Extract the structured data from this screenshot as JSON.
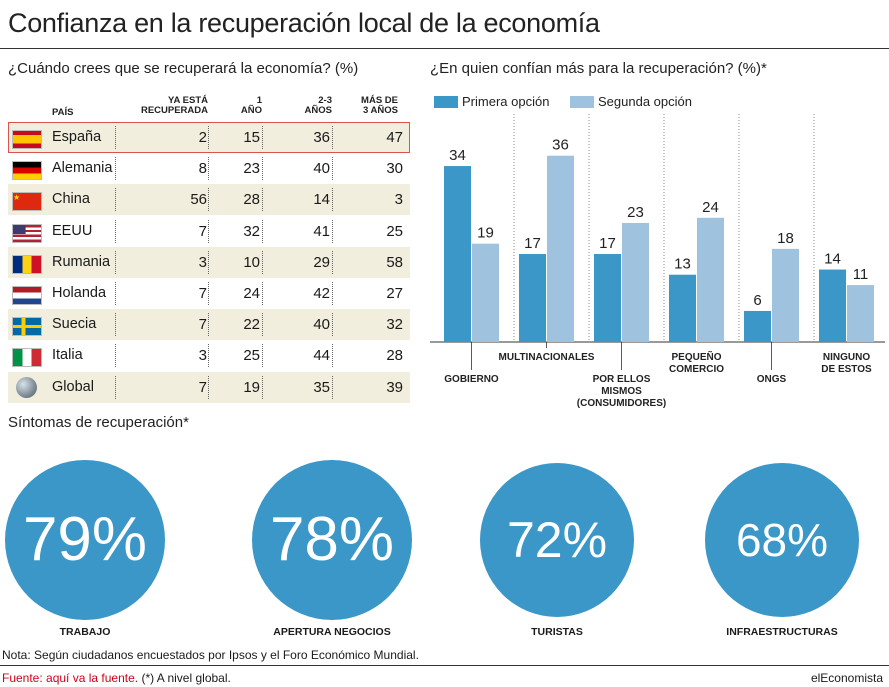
{
  "title": "Confianza en la recuperación local de la economía",
  "table": {
    "subtitle": "¿Cuándo crees que se recuperará la economía? (%)",
    "headers": {
      "country": "PAÍS",
      "recovered": [
        "YA ESTÁ",
        "RECUPERADA"
      ],
      "one_year": [
        "1",
        "AÑO"
      ],
      "two_three": [
        "2-3",
        "AÑOS"
      ],
      "more_three": [
        "MÁS DE",
        "3 AÑOS"
      ]
    },
    "rows": [
      {
        "country": "España",
        "flag": "spain-flag-icon",
        "values": [
          2,
          15,
          36,
          47
        ]
      },
      {
        "country": "Alemania",
        "flag": "germany-flag-icon",
        "values": [
          8,
          23,
          40,
          30
        ]
      },
      {
        "country": "China",
        "flag": "china-flag-icon",
        "values": [
          56,
          28,
          14,
          3
        ]
      },
      {
        "country": "EEUU",
        "flag": "usa-flag-icon",
        "values": [
          7,
          32,
          41,
          25
        ]
      },
      {
        "country": "Rumania",
        "flag": "romania-flag-icon",
        "values": [
          3,
          10,
          29,
          58
        ]
      },
      {
        "country": "Holanda",
        "flag": "netherlands-flag-icon",
        "values": [
          7,
          24,
          42,
          27
        ]
      },
      {
        "country": "Suecia",
        "flag": "sweden-flag-icon",
        "values": [
          7,
          22,
          40,
          32
        ]
      },
      {
        "country": "Italia",
        "flag": "italy-flag-icon",
        "values": [
          3,
          25,
          44,
          28
        ]
      },
      {
        "country": "Global",
        "flag": "globe-icon",
        "values": [
          7,
          19,
          35,
          39
        ]
      }
    ]
  },
  "chart_data": {
    "type": "bar",
    "title": "¿En quien confían más para la recuperación? (%)*",
    "categories": [
      "GOBIERNO",
      "MULTINACIONALES",
      "POR ELLOS MISMOS (CONSUMIDORES)",
      "PEQUEÑO COMERCIO",
      "ONGS",
      "NINGUNO DE ESTOS"
    ],
    "category_lines": [
      [
        "GOBIERNO"
      ],
      [
        "MULTINACIONALES"
      ],
      [
        "POR ELLOS",
        "MISMOS",
        "(CONSUMIDORES)"
      ],
      [
        "PEQUEÑO",
        "COMERCIO"
      ],
      [
        "ONGS"
      ],
      [
        "NINGUNO",
        "DE ESTOS"
      ]
    ],
    "series": [
      {
        "name": "Primera opción",
        "values": [
          34,
          17,
          17,
          13,
          6,
          14
        ],
        "color": "#3a97c7"
      },
      {
        "name": "Segunda opción",
        "values": [
          19,
          36,
          23,
          24,
          18,
          11
        ],
        "color": "#9fc3df"
      }
    ],
    "ylim": [
      0,
      40
    ],
    "legend": "top-left"
  },
  "symptoms": {
    "title": "Síntomas de recuperación*",
    "items": [
      {
        "value": "79%",
        "label": "TRABAJO"
      },
      {
        "value": "78%",
        "label": "APERTURA NEGOCIOS"
      },
      {
        "value": "72%",
        "label": "TURISTAS"
      },
      {
        "value": "68%",
        "label": "INFRAESTRUCTURAS"
      }
    ],
    "color": "#3a97c7"
  },
  "footer": {
    "note": "Nota: Según ciudadanos encuestados por Ipsos y el Foro Económico Mundial.",
    "source": "Fuente: aquí va la fuente.",
    "asterisk": "(*) A nivel global.",
    "brand": "elEconomista",
    "source_color": "#d0021b"
  }
}
